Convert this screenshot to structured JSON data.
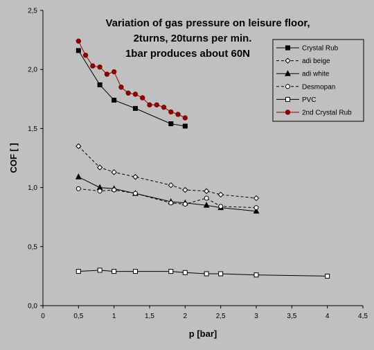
{
  "chart_data": {
    "type": "line",
    "title_lines": [
      "Variation of gas pressure on leisure floor,",
      "2turns, 20turns per min.",
      "1bar produces about 60N"
    ],
    "xlabel": "p [bar]",
    "ylabel": "COF [ ]",
    "xlim": [
      0,
      4.5
    ],
    "ylim": [
      0,
      2.5
    ],
    "x_ticks": [
      "0",
      "0,5",
      "1",
      "1,5",
      "2",
      "2,5",
      "3",
      "3,5",
      "4",
      "4,5"
    ],
    "y_ticks": [
      "0,0",
      "0,5",
      "1,0",
      "1,5",
      "2,0",
      "2,5"
    ],
    "grid": false,
    "legend_position": "right",
    "series": [
      {
        "name": "Crystal Rub",
        "color": "#000000",
        "dash": "solid",
        "marker": "square-filled",
        "x": [
          0.5,
          0.8,
          1.0,
          1.3,
          1.8,
          2.0
        ],
        "y": [
          2.16,
          1.87,
          1.74,
          1.67,
          1.54,
          1.52
        ]
      },
      {
        "name": "adi beige",
        "color": "#000000",
        "dash": "dashed",
        "marker": "diamond-open",
        "x": [
          0.5,
          0.8,
          1.0,
          1.3,
          1.8,
          2.0,
          2.3,
          2.5,
          3.0
        ],
        "y": [
          1.35,
          1.17,
          1.13,
          1.09,
          1.02,
          0.98,
          0.97,
          0.94,
          0.91
        ]
      },
      {
        "name": "adi white",
        "color": "#000000",
        "dash": "solid",
        "marker": "triangle-filled",
        "x": [
          0.5,
          0.8,
          1.0,
          1.3,
          1.8,
          2.0,
          2.3,
          2.5,
          3.0
        ],
        "y": [
          1.09,
          1.0,
          0.99,
          0.95,
          0.88,
          0.87,
          0.85,
          0.83,
          0.8
        ]
      },
      {
        "name": "Desmopan",
        "color": "#000000",
        "dash": "dashed",
        "marker": "circle-open",
        "x": [
          0.5,
          0.8,
          1.0,
          1.3,
          1.8,
          2.0,
          2.3,
          2.5,
          3.0
        ],
        "y": [
          0.99,
          0.97,
          0.98,
          0.95,
          0.87,
          0.86,
          0.91,
          0.84,
          0.83
        ]
      },
      {
        "name": "PVC",
        "color": "#000000",
        "dash": "solid",
        "marker": "square-open",
        "x": [
          0.5,
          0.8,
          1.0,
          1.3,
          1.8,
          2.0,
          2.3,
          2.5,
          3.0,
          4.0
        ],
        "y": [
          0.29,
          0.3,
          0.29,
          0.29,
          0.29,
          0.28,
          0.27,
          0.27,
          0.26,
          0.25
        ]
      },
      {
        "name": "2nd Crystal Rub",
        "color": "#8b0000",
        "dash": "solid",
        "marker": "circle-filled",
        "x": [
          0.5,
          0.6,
          0.7,
          0.8,
          0.9,
          1.0,
          1.1,
          1.2,
          1.3,
          1.4,
          1.5,
          1.6,
          1.7,
          1.8,
          1.9,
          2.0
        ],
        "y": [
          2.24,
          2.12,
          2.03,
          2.02,
          1.96,
          1.98,
          1.85,
          1.8,
          1.79,
          1.76,
          1.7,
          1.7,
          1.68,
          1.64,
          1.62,
          1.59
        ]
      }
    ]
  }
}
